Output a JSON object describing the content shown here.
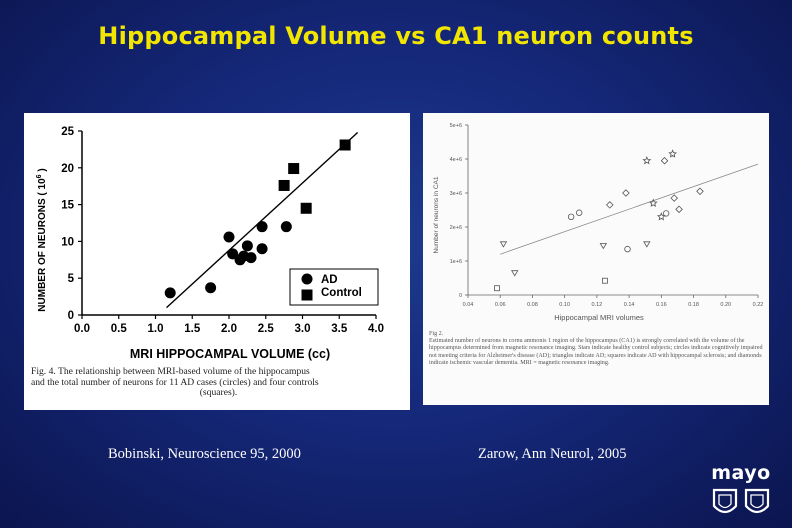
{
  "slide": {
    "title": "Hippocampal Volume vs CA1 neuron counts",
    "cite_left": "Bobinski, Neuroscience 95, 2000",
    "cite_right": "Zarow, Ann Neurol, 2005",
    "logo": "mayo"
  },
  "colors": {
    "title": "#f2e600",
    "background": "#15287a",
    "text": "#ffffff"
  },
  "left_figure": {
    "caption_line1": "Fig. 4.  The relationship between MRI-based volume of the hippocampus",
    "caption_line2": "and the total number of neurons for 11 AD cases (circles) and four controls",
    "caption_line3": "(squares)."
  },
  "right_figure": {
    "caption_head": "Fig 2.",
    "caption_text": "Estimated number of neurons in cornu ammonis 1 region of the hippocampus (CA1) is strongly correlated with the volume of the hippocampus determined from magnetic resonance imaging. Stars indicate healthy control subjects; circles indicate cognitively impaired not meeting criteria for Alzheimer's disease (AD); triangles indicate AD; squares indicate AD with hippocampal sclerosis; and diamonds indicate ischemic vascular dementia. MRI = magnetic resonance imaging."
  },
  "chart_data": [
    {
      "type": "scatter",
      "title": "",
      "xlabel": "MRI HIPPOCAMPAL VOLUME (cc)",
      "ylabel": "NUMBER OF NEURONS ( 10",
      "ylabel_sup": "6",
      "ylabel_end": " )",
      "xlim": [
        0,
        4
      ],
      "ylim": [
        0,
        25
      ],
      "xticks": [
        "0.0",
        "0.5",
        "1.0",
        "1.5",
        "2.0",
        "2.5",
        "3.0",
        "3.5",
        "4.0"
      ],
      "yticks": [
        "0",
        "5",
        "10",
        "15",
        "20",
        "25"
      ],
      "grid": false,
      "legend_position": "bottom-right",
      "series": [
        {
          "name": "AD",
          "marker": "circle",
          "color": "#000000",
          "points": [
            [
              1.2,
              3.0
            ],
            [
              1.75,
              3.7
            ],
            [
              2.0,
              10.6
            ],
            [
              2.05,
              8.3
            ],
            [
              2.15,
              7.5
            ],
            [
              2.2,
              8.0
            ],
            [
              2.25,
              9.4
            ],
            [
              2.3,
              7.8
            ],
            [
              2.45,
              12.0
            ],
            [
              2.45,
              9.0
            ],
            [
              2.78,
              12.0
            ]
          ]
        },
        {
          "name": "Control",
          "marker": "square",
          "color": "#000000",
          "points": [
            [
              2.75,
              17.6
            ],
            [
              2.88,
              19.9
            ],
            [
              3.05,
              14.5
            ],
            [
              3.58,
              23.1
            ]
          ]
        }
      ],
      "fit_line": [
        [
          1.15,
          1.0
        ],
        [
          3.75,
          24.8
        ]
      ]
    },
    {
      "type": "scatter",
      "title": "",
      "xlabel": "Hippocampal MRI volumes",
      "ylabel": "Number of neurons in CA1",
      "xlim": [
        0.04,
        0.22
      ],
      "ylim": [
        0,
        5000000
      ],
      "xticks": [
        "0.04",
        "0.06",
        "0.08",
        "0.10",
        "0.12",
        "0.14",
        "0.16",
        "0.18",
        "0.20",
        "0.22"
      ],
      "yticks": [
        "0",
        "1e+6",
        "2e+6",
        "3e+6",
        "4e+6",
        "5e+6"
      ],
      "grid": false,
      "series": [
        {
          "marker": "star",
          "points": [
            [
              0.151,
              3950000
            ],
            [
              0.167,
              4150000
            ],
            [
              0.155,
              2700000
            ],
            [
              0.16,
              2300000
            ]
          ]
        },
        {
          "marker": "circle",
          "points": [
            [
              0.104,
              2300000
            ],
            [
              0.109,
              2420000
            ],
            [
              0.139,
              1350000
            ],
            [
              0.163,
              2400000
            ]
          ]
        },
        {
          "marker": "triangle",
          "points": [
            [
              0.062,
              1500000
            ],
            [
              0.069,
              650000
            ],
            [
              0.124,
              1450000
            ],
            [
              0.151,
              1500000
            ]
          ]
        },
        {
          "marker": "square",
          "points": [
            [
              0.125,
              420000
            ],
            [
              0.058,
              200000
            ]
          ]
        },
        {
          "marker": "diamond",
          "points": [
            [
              0.128,
              2650000
            ],
            [
              0.162,
              3950000
            ],
            [
              0.168,
              2850000
            ],
            [
              0.171,
              2520000
            ],
            [
              0.184,
              3050000
            ],
            [
              0.138,
              3000000
            ]
          ]
        }
      ],
      "fit_line": [
        [
          0.06,
          1200000
        ],
        [
          0.22,
          3850000
        ]
      ]
    }
  ]
}
